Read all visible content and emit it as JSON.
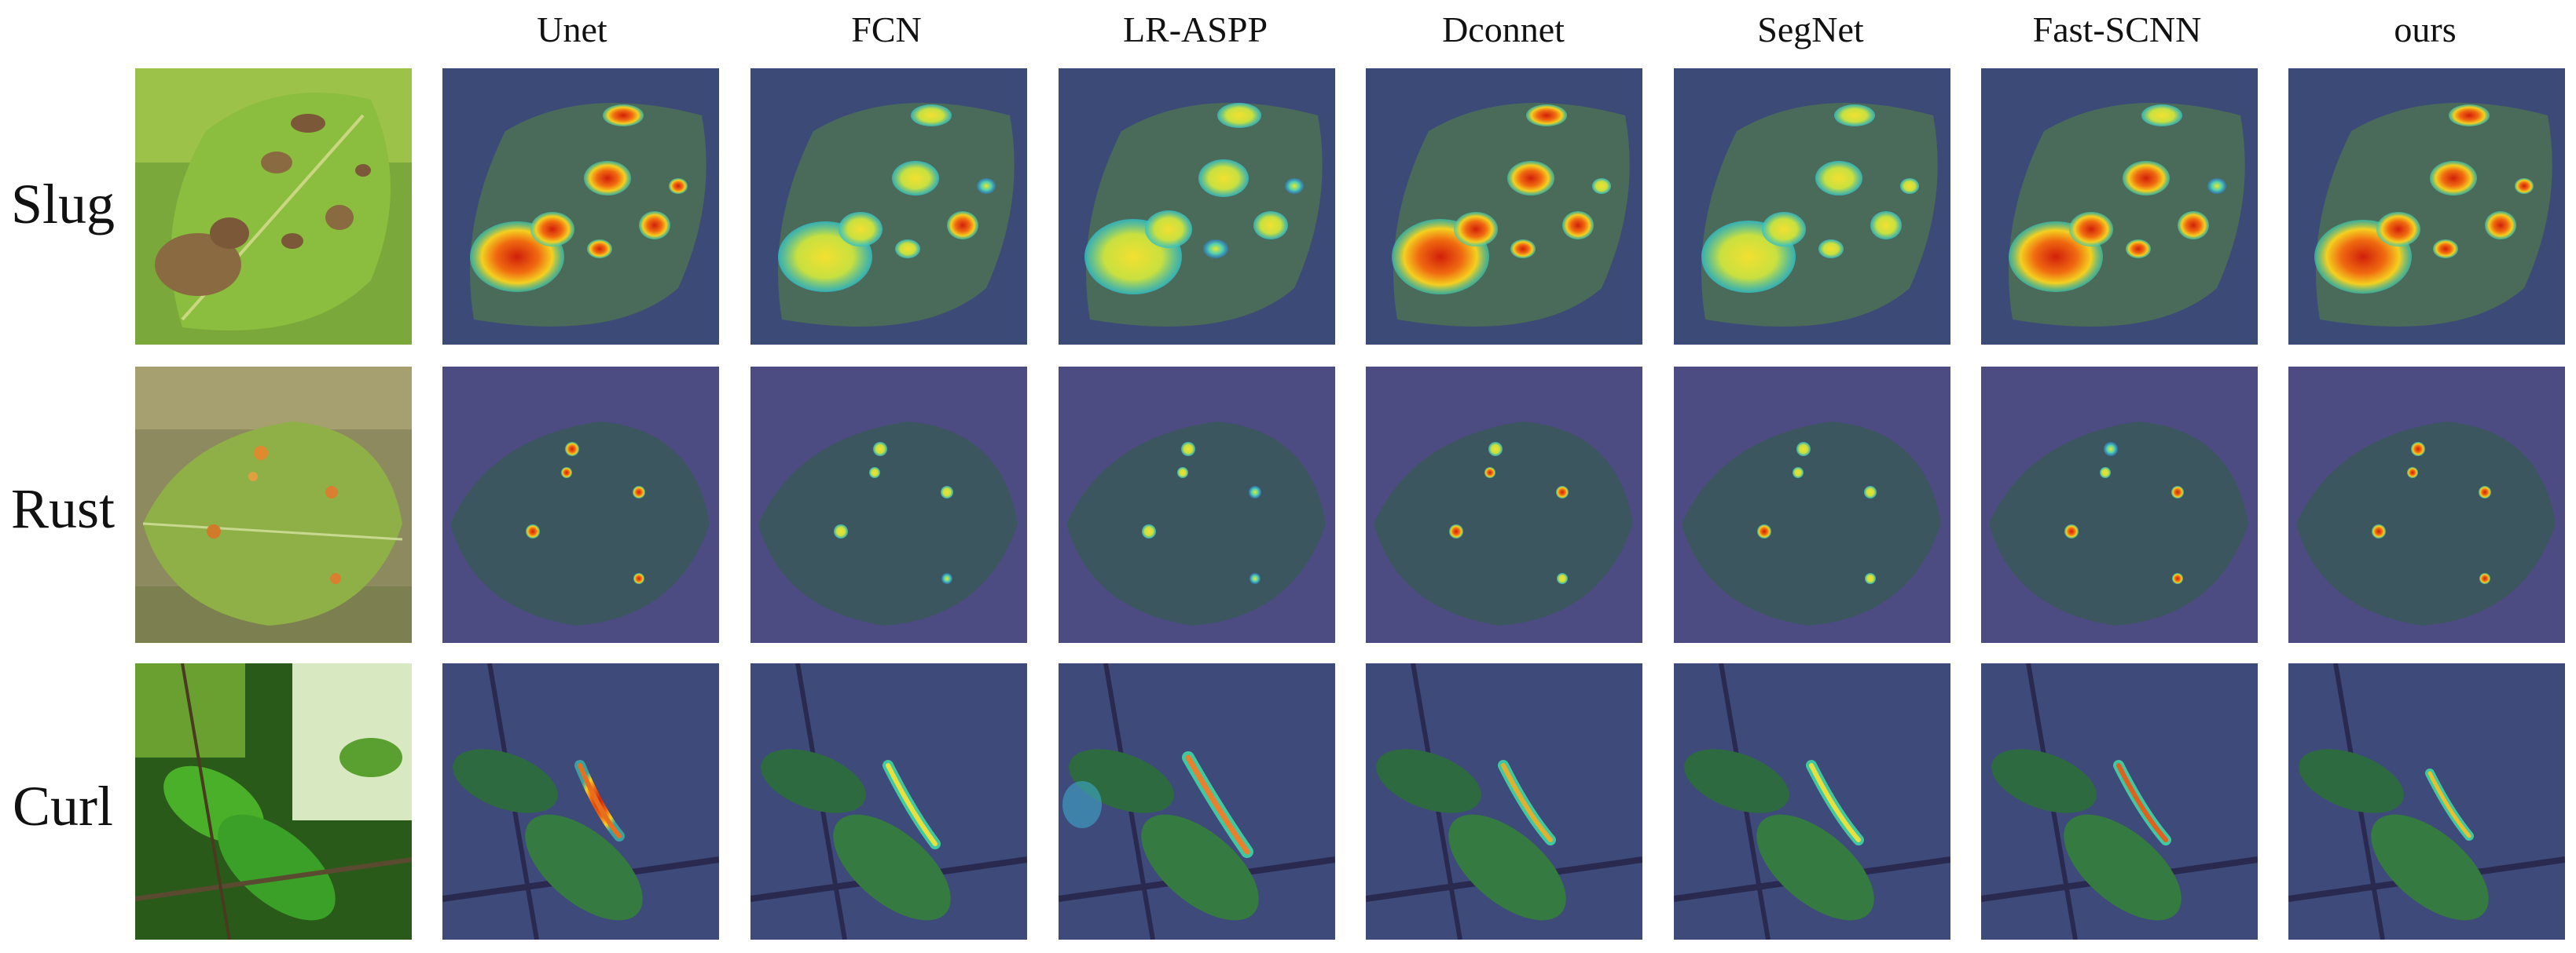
{
  "columns": [
    "Unet",
    "FCN",
    "LR-ASPP",
    "Dconnet",
    "SegNet",
    "Fast-SCNN",
    "ours"
  ],
  "rows": [
    "Slug",
    "Rust",
    "Curl"
  ]
}
